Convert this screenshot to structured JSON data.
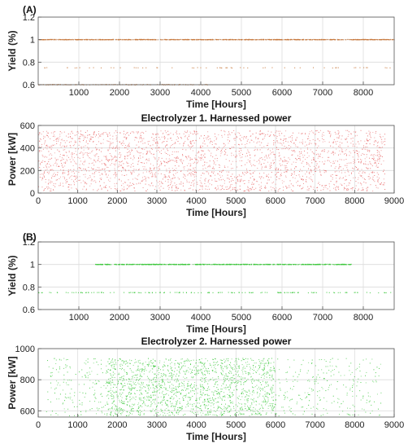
{
  "figure": {
    "label_a": "(A)",
    "label_b": "(B)"
  },
  "chart_data": [
    {
      "id": "a1",
      "type": "scatter",
      "title": "",
      "xlabel": "Time [Hours]",
      "ylabel": "Yield (%)",
      "xlim": [
        0,
        8760
      ],
      "ylim": [
        0.6,
        1.2
      ],
      "xticks": [
        1000,
        2000,
        3000,
        4000,
        5000,
        6000,
        7000,
        8000
      ],
      "yticks": [
        0.6,
        0.8,
        1,
        1.2
      ],
      "ytick_labels": [
        "0.6",
        "0.8",
        "1",
        "1.2"
      ],
      "grid": true,
      "color": "#c8783c",
      "series": [
        {
          "values_description": "",
          "bands": [
            {
              "y": 1.0,
              "x_range": [
                0,
                8760
              ],
              "count": 900
            },
            {
              "y": 0.75,
              "x_range": [
                0,
                8760
              ],
              "count": 60
            },
            {
              "y": 0.6,
              "x_range": [
                0,
                4200
              ],
              "count": 120
            }
          ]
        }
      ]
    },
    {
      "id": "a2",
      "type": "scatter",
      "title": "Electrolyzer 1. Harnessed power",
      "xlabel": "Time [Hours]",
      "ylabel": "Power [kW]",
      "xlim": [
        0,
        9000
      ],
      "ylim": [
        0,
        600
      ],
      "xticks": [
        0,
        1000,
        2000,
        3000,
        4000,
        5000,
        6000,
        7000,
        8000,
        9000
      ],
      "yticks": [
        0,
        200,
        400,
        600
      ],
      "ytick_labels": [
        "0",
        "200",
        "400",
        "600"
      ],
      "grid": true,
      "color": "#e86a6a",
      "series": [
        {
          "cloud": {
            "x_range": [
              0,
              8760
            ],
            "y_range": [
              20,
              560
            ],
            "count": 2600
          }
        }
      ]
    },
    {
      "id": "b1",
      "type": "scatter",
      "title": "",
      "xlabel": "Time [Hours]",
      "ylabel": "Yield (%)",
      "xlim": [
        0,
        8760
      ],
      "ylim": [
        0.6,
        1.2
      ],
      "xticks": [
        1000,
        2000,
        3000,
        4000,
        5000,
        6000,
        7000,
        8000
      ],
      "yticks": [
        0.6,
        0.8,
        1,
        1.2
      ],
      "ytick_labels": [
        "0.6",
        "0.8",
        "1",
        "1.2"
      ],
      "grid": true,
      "color": "#3cc83c",
      "series": [
        {
          "bands": [
            {
              "y": 1.0,
              "x_range": [
                1400,
                7700
              ],
              "count": 700
            },
            {
              "y": 0.75,
              "x_range": [
                0,
                8700
              ],
              "count": 140
            }
          ]
        }
      ]
    },
    {
      "id": "b2",
      "type": "scatter",
      "title": "Electrolyzer 2. Harnessed power",
      "xlabel": "Time [Hours]",
      "ylabel": "Power [kW]",
      "xlim": [
        0,
        9000
      ],
      "ylim": [
        560,
        1000
      ],
      "xticks": [
        0,
        1000,
        2000,
        3000,
        4000,
        5000,
        6000,
        7000,
        8000,
        9000
      ],
      "yticks": [
        600,
        800,
        1000
      ],
      "ytick_labels": [
        "600",
        "800",
        "1000"
      ],
      "grid": true,
      "color": "#3cc83c",
      "series": [
        {
          "cloud": {
            "x_range": [
              200,
              8700
            ],
            "y_range": [
              570,
              940
            ],
            "count": 2200,
            "dense_x_range": [
              1700,
              6000
            ]
          }
        }
      ]
    }
  ]
}
